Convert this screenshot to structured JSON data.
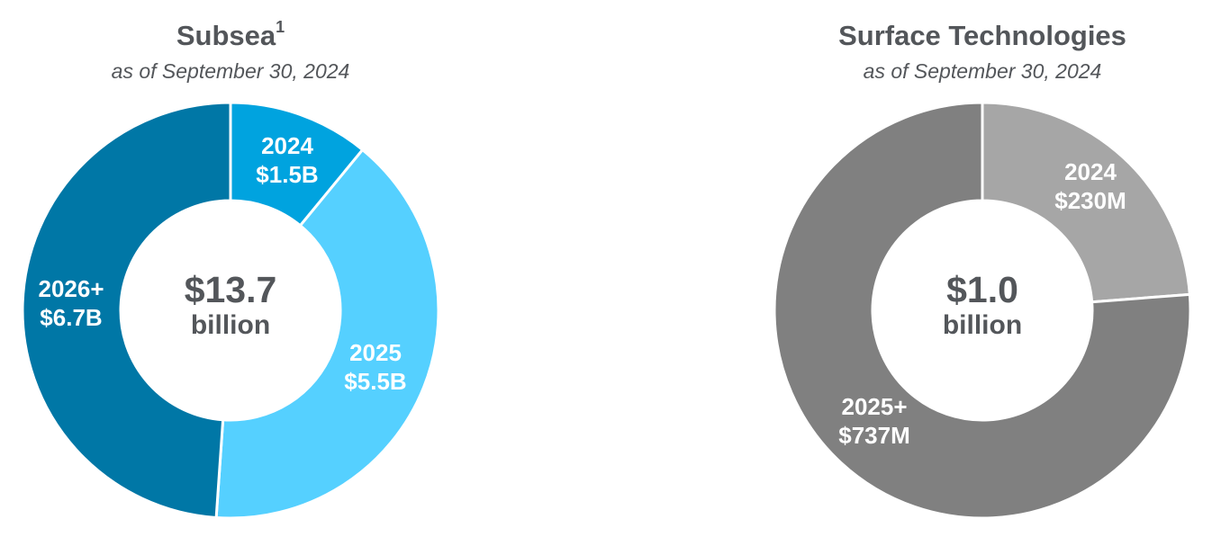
{
  "chart_data": [
    {
      "type": "pie",
      "title": "Subsea",
      "title_footnote": "1",
      "subtitle": "as of September 30, 2024",
      "center_value": "$13.7",
      "center_unit": "billion",
      "categories": [
        "2024",
        "2025",
        "2026+"
      ],
      "values": [
        1.5,
        5.5,
        6.7
      ],
      "value_labels": [
        "$1.5B",
        "$5.5B",
        "$6.7B"
      ],
      "unit": "billion USD",
      "colors": [
        "#00A3DF",
        "#55D0FF",
        "#0077A6"
      ]
    },
    {
      "type": "pie",
      "title": "Surface Technologies",
      "subtitle": "as of September 30, 2024",
      "center_value": "$1.0",
      "center_unit": "billion",
      "categories": [
        "2024",
        "2025+"
      ],
      "values": [
        230,
        737
      ],
      "value_labels": [
        "$230M",
        "$737M"
      ],
      "unit": "million USD",
      "colors": [
        "#A6A6A6",
        "#808080"
      ]
    }
  ]
}
